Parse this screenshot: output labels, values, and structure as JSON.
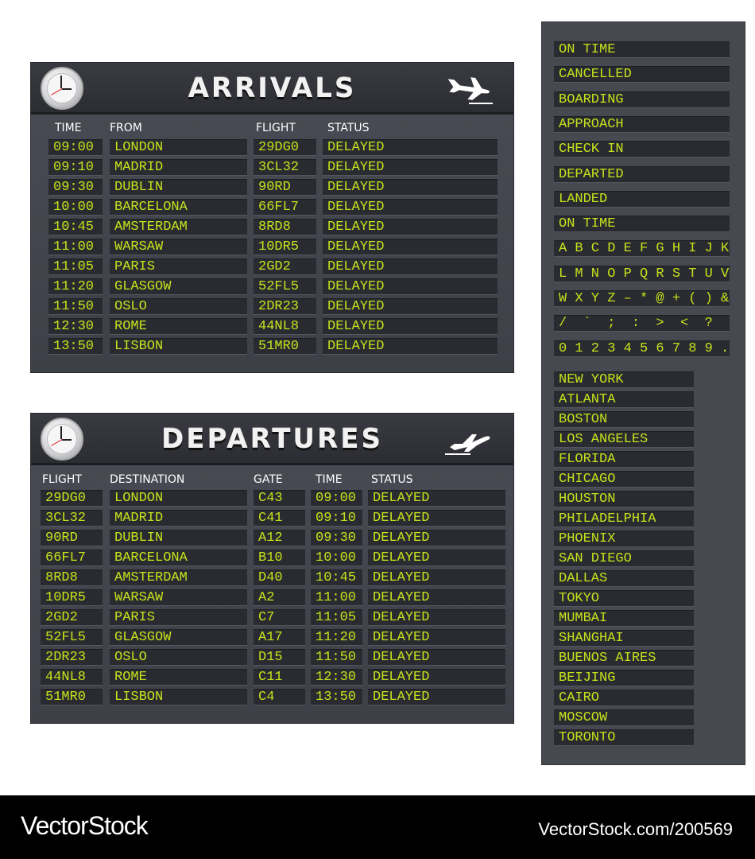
{
  "arrivals": {
    "title": "ARRIVALS",
    "columns": [
      "TIME",
      "FROM",
      "FLIGHT",
      "STATUS"
    ],
    "rows": [
      [
        "09:00",
        "LONDON",
        "29DG0",
        "DELAYED"
      ],
      [
        "09:10",
        "MADRID",
        "3CL32",
        "DELAYED"
      ],
      [
        "09:30",
        "DUBLIN",
        "90RD",
        "DELAYED"
      ],
      [
        "10:00",
        "BARCELONA",
        "66FL7",
        "DELAYED"
      ],
      [
        "10:45",
        "AMSTERDAM",
        "8RD8",
        "DELAYED"
      ],
      [
        "11:00",
        "WARSAW",
        "10DR5",
        "DELAYED"
      ],
      [
        "11:05",
        "PARIS",
        "2GD2",
        "DELAYED"
      ],
      [
        "11:20",
        "GLASGOW",
        "52FL5",
        "DELAYED"
      ],
      [
        "11:50",
        "OSLO",
        "2DR23",
        "DELAYED"
      ],
      [
        "12:30",
        "ROME",
        "44NL8",
        "DELAYED"
      ],
      [
        "13:50",
        "LISBON",
        "51MR0",
        "DELAYED"
      ]
    ]
  },
  "departures": {
    "title": "DEPARTURES",
    "columns": [
      "FLIGHT",
      "DESTINATION",
      "GATE",
      "TIME",
      "STATUS"
    ],
    "rows": [
      [
        "29DG0",
        "LONDON",
        "C43",
        "09:00",
        "DELAYED"
      ],
      [
        "3CL32",
        "MADRID",
        "C41",
        "09:10",
        "DELAYED"
      ],
      [
        "90RD",
        "DUBLIN",
        "A12",
        "09:30",
        "DELAYED"
      ],
      [
        "66FL7",
        "BARCELONA",
        "B10",
        "10:00",
        "DELAYED"
      ],
      [
        "8RD8",
        "AMSTERDAM",
        "D40",
        "10:45",
        "DELAYED"
      ],
      [
        "10DR5",
        "WARSAW",
        "A2",
        "11:00",
        "DELAYED"
      ],
      [
        "2GD2",
        "PARIS",
        "C7",
        "11:05",
        "DELAYED"
      ],
      [
        "52FL5",
        "GLASGOW",
        "A17",
        "11:20",
        "DELAYED"
      ],
      [
        "2DR23",
        "OSLO",
        "D15",
        "11:50",
        "DELAYED"
      ],
      [
        "44NL8",
        "ROME",
        "C11",
        "12:30",
        "DELAYED"
      ],
      [
        "51MR0",
        "LISBON",
        "C4",
        "13:50",
        "DELAYED"
      ]
    ]
  },
  "statuses": [
    "ON TIME",
    "CANCELLED",
    "BOARDING",
    "APPROACH",
    "CHECK IN",
    "DEPARTED",
    "LANDED",
    "ON TIME"
  ],
  "characters": [
    "A B C D E F G H I J K",
    "L M N O P Q R S T U V",
    "W X Y Z – * @ + ( ) &",
    "/  `  ;  :  >  <  ?  =",
    "0 1 2 3 4 5 6 7 8 9 ."
  ],
  "cities": [
    "NEW YORK",
    "ATLANTA",
    "BOSTON",
    "LOS ANGELES",
    "FLORIDA",
    "CHICAGO",
    "HOUSTON",
    "PHILADELPHIA",
    "PHOENIX",
    "SAN DIEGO",
    "DALLAS",
    "TOKYO",
    "MUMBAI",
    "SHANGHAI",
    "BUENOS AIRES",
    "BEIJING",
    "CAIRO",
    "MOSCOW",
    "TORONTO"
  ],
  "footer": {
    "logo": "VectorStock",
    "url": "VectorStock.com/200569"
  },
  "colors": {
    "led": "#c5e21c",
    "panel": "#44464e"
  }
}
